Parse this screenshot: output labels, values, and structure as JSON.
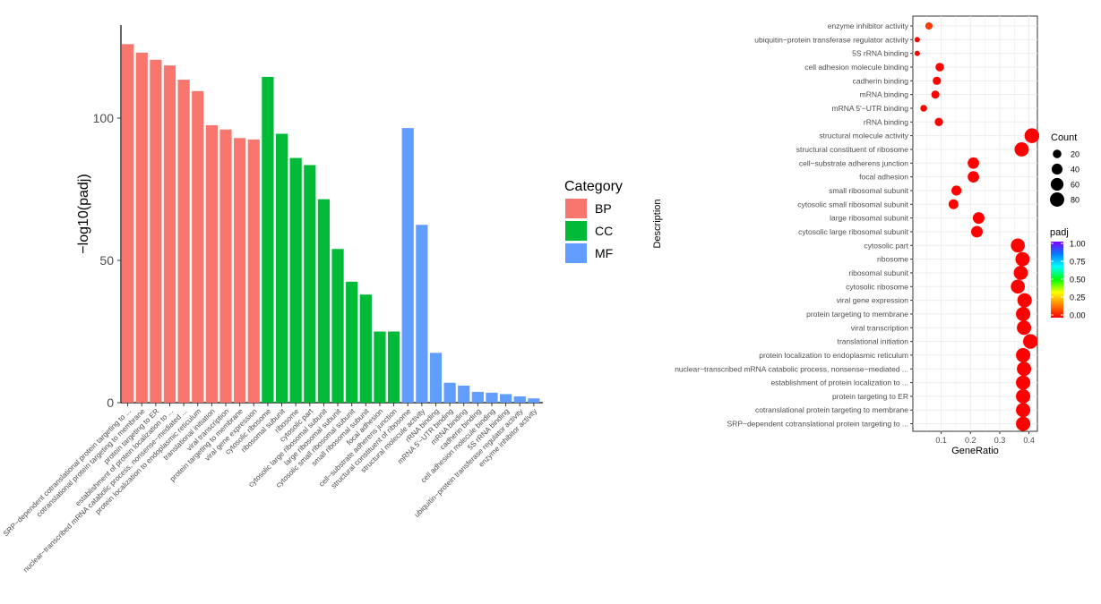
{
  "chart_data": [
    {
      "type": "bar",
      "ylabel": "−log10(padj)",
      "ylim": [
        0,
        130
      ],
      "yticks": [
        0,
        50,
        100
      ],
      "legend": {
        "title": "Category",
        "placement": "right",
        "items": [
          {
            "label": "BP",
            "color": "#F8766D"
          },
          {
            "label": "CC",
            "color": "#00BA38"
          },
          {
            "label": "MF",
            "color": "#619CFF"
          }
        ]
      },
      "bars": [
        {
          "label": "SRP−dependent cotranslational protein targeting to ...",
          "category": "BP",
          "value": 126
        },
        {
          "label": "cotranslational protein targeting to membrane",
          "category": "BP",
          "value": 123
        },
        {
          "label": "protein targeting to ER",
          "category": "BP",
          "value": 120.5
        },
        {
          "label": "establishment of protein localization to ...",
          "category": "BP",
          "value": 118.5
        },
        {
          "label": "nuclear−transcribed mRNA catabolic process, nonsense−mediated ...",
          "category": "BP",
          "value": 113.5
        },
        {
          "label": "protein localization to endoplasmic reticulum",
          "category": "BP",
          "value": 109.5
        },
        {
          "label": "translational initiation",
          "category": "BP",
          "value": 97.5
        },
        {
          "label": "viral transcription",
          "category": "BP",
          "value": 96
        },
        {
          "label": "protein targeting to membrane",
          "category": "BP",
          "value": 93
        },
        {
          "label": "viral gene expression",
          "category": "BP",
          "value": 92.5
        },
        {
          "label": "cytosolic ribosome",
          "category": "CC",
          "value": 114.5
        },
        {
          "label": "ribosomal subunit",
          "category": "CC",
          "value": 94.5
        },
        {
          "label": "ribosome",
          "category": "CC",
          "value": 86
        },
        {
          "label": "cytosolic part",
          "category": "CC",
          "value": 83.5
        },
        {
          "label": "cytosolic large ribosomal subunit",
          "category": "CC",
          "value": 71.5
        },
        {
          "label": "large ribosomal subunit",
          "category": "CC",
          "value": 54
        },
        {
          "label": "cytosolic small ribosomal subunit",
          "category": "CC",
          "value": 42.5
        },
        {
          "label": "small ribosomal subunit",
          "category": "CC",
          "value": 38
        },
        {
          "label": "focal adhesion",
          "category": "CC",
          "value": 25
        },
        {
          "label": "cell−substrate adherens junction",
          "category": "CC",
          "value": 25
        },
        {
          "label": "structural constituent of ribosome",
          "category": "MF",
          "value": 96.5
        },
        {
          "label": "structural molecule activity",
          "category": "MF",
          "value": 62.5
        },
        {
          "label": "rRNA binding",
          "category": "MF",
          "value": 17.5
        },
        {
          "label": "mRNA 5'−UTR binding",
          "category": "MF",
          "value": 7
        },
        {
          "label": "mRNA binding",
          "category": "MF",
          "value": 6
        },
        {
          "label": "cadherin binding",
          "category": "MF",
          "value": 3.8
        },
        {
          "label": "cell adhesion molecule binding",
          "category": "MF",
          "value": 3.5
        },
        {
          "label": "5S rRNA binding",
          "category": "MF",
          "value": 3
        },
        {
          "label": "ubiquitin−protein transferase regulator activity",
          "category": "MF",
          "value": 2.2
        },
        {
          "label": "enzyme inhibitor activity",
          "category": "MF",
          "value": 1.5
        }
      ]
    },
    {
      "type": "scatter",
      "xlabel": "GeneRatio",
      "ylabel": "Description",
      "xlim": [
        0,
        0.43
      ],
      "xticks": [
        0.1,
        0.2,
        0.3,
        0.4
      ],
      "grid": true,
      "size_legend": {
        "title": "Count",
        "values": [
          20,
          40,
          60,
          80
        ]
      },
      "color_legend": {
        "title": "padj",
        "ticks": [
          "1.00",
          "0.75",
          "0.50",
          "0.25",
          "0.00"
        ],
        "colors": [
          "#FF0000",
          "#FF8000",
          "#FFFF00",
          "#00FF00",
          "#00FFFF",
          "#0080FF",
          "#8000FF"
        ]
      },
      "points": [
        {
          "term": "enzyme inhibitor activity",
          "gene_ratio": 0.058,
          "count": 12,
          "padj": 0.03
        },
        {
          "term": "ubiquitin−protein transferase regulator activity",
          "gene_ratio": 0.018,
          "count": 4,
          "padj": 0.01
        },
        {
          "term": "5S rRNA binding",
          "gene_ratio": 0.018,
          "count": 4,
          "padj": 0.0
        },
        {
          "term": "cell adhesion molecule binding",
          "gene_ratio": 0.095,
          "count": 20,
          "padj": 0.0
        },
        {
          "term": "cadherin binding",
          "gene_ratio": 0.085,
          "count": 18,
          "padj": 0.0
        },
        {
          "term": "mRNA binding",
          "gene_ratio": 0.08,
          "count": 17,
          "padj": 0.0
        },
        {
          "term": "mRNA 5'−UTR binding",
          "gene_ratio": 0.04,
          "count": 9,
          "padj": 0.0
        },
        {
          "term": "rRNA binding",
          "gene_ratio": 0.092,
          "count": 19,
          "padj": 0.0
        },
        {
          "term": "structural molecule activity",
          "gene_ratio": 0.41,
          "count": 87,
          "padj": 0.0
        },
        {
          "term": "structural constituent of ribosome",
          "gene_ratio": 0.375,
          "count": 80,
          "padj": 0.0
        },
        {
          "term": "cell−substrate adherens junction",
          "gene_ratio": 0.21,
          "count": 45,
          "padj": 0.0
        },
        {
          "term": "focal adhesion",
          "gene_ratio": 0.21,
          "count": 45,
          "padj": 0.0
        },
        {
          "term": "small ribosomal subunit",
          "gene_ratio": 0.152,
          "count": 32,
          "padj": 0.0
        },
        {
          "term": "cytosolic small ribosomal subunit",
          "gene_ratio": 0.142,
          "count": 30,
          "padj": 0.0
        },
        {
          "term": "large ribosomal subunit",
          "gene_ratio": 0.228,
          "count": 48,
          "padj": 0.0
        },
        {
          "term": "cytosolic large ribosomal subunit",
          "gene_ratio": 0.222,
          "count": 47,
          "padj": 0.0
        },
        {
          "term": "cytosolic part",
          "gene_ratio": 0.362,
          "count": 77,
          "padj": 0.0
        },
        {
          "term": "ribosome",
          "gene_ratio": 0.378,
          "count": 80,
          "padj": 0.0
        },
        {
          "term": "ribosomal subunit",
          "gene_ratio": 0.372,
          "count": 79,
          "padj": 0.0
        },
        {
          "term": "cytosolic ribosome",
          "gene_ratio": 0.362,
          "count": 77,
          "padj": 0.0
        },
        {
          "term": "viral gene expression",
          "gene_ratio": 0.385,
          "count": 82,
          "padj": 0.0
        },
        {
          "term": "protein targeting to membrane",
          "gene_ratio": 0.38,
          "count": 81,
          "padj": 0.0
        },
        {
          "term": "viral transcription",
          "gene_ratio": 0.383,
          "count": 81,
          "padj": 0.0
        },
        {
          "term": "translational initiation",
          "gene_ratio": 0.405,
          "count": 86,
          "padj": 0.0
        },
        {
          "term": "protein localization to endoplasmic reticulum",
          "gene_ratio": 0.38,
          "count": 81,
          "padj": 0.0
        },
        {
          "term": "nuclear−transcribed mRNA catabolic process, nonsense−mediated ...",
          "gene_ratio": 0.383,
          "count": 81,
          "padj": 0.0
        },
        {
          "term": "establishment of protein localization to ...",
          "gene_ratio": 0.38,
          "count": 81,
          "padj": 0.0
        },
        {
          "term": "protein targeting to ER",
          "gene_ratio": 0.38,
          "count": 81,
          "padj": 0.0
        },
        {
          "term": "cotranslational protein targeting to membrane",
          "gene_ratio": 0.38,
          "count": 81,
          "padj": 0.0
        },
        {
          "term": "SRP−dependent cotranslational protein targeting to ...",
          "gene_ratio": 0.38,
          "count": 81,
          "padj": 0.0
        }
      ]
    }
  ]
}
